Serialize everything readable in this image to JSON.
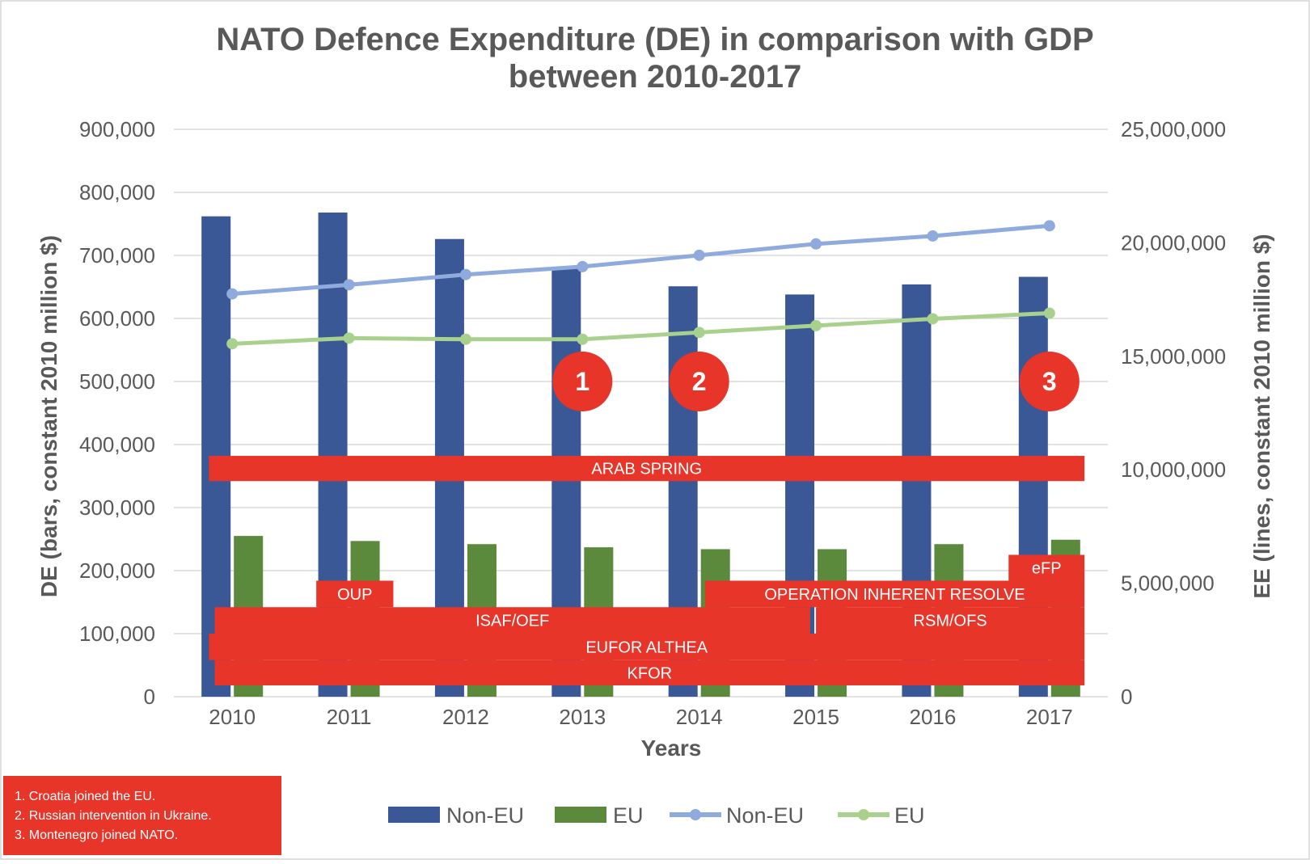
{
  "chart_data": {
    "type": "bar",
    "title_lines": [
      "NATO Defence Expenditure (DE) in comparison with GDP",
      "between 2010-2017"
    ],
    "xlabel": "Years",
    "ylabel_left": "DE (bars, constant 2010 million $)",
    "ylabel_right": "EE (lines, constant 2010 million $)",
    "categories": [
      "2010",
      "2011",
      "2012",
      "2013",
      "2014",
      "2015",
      "2016",
      "2017"
    ],
    "y_left": {
      "min": 0,
      "max": 900000,
      "ticks": [
        "0",
        "100,000",
        "200,000",
        "300,000",
        "400,000",
        "500,000",
        "600,000",
        "700,000",
        "800,000",
        "900,000"
      ]
    },
    "y_right": {
      "min": 0,
      "max": 25000000,
      "ticks": [
        "0",
        "5,000,000",
        "10,000,000",
        "15,000,000",
        "20,000,000",
        "25,000,000"
      ]
    },
    "grid": true,
    "legend_position": "bottom",
    "bar_series": [
      {
        "name": "Non-EU",
        "color": "#3a5796",
        "values": [
          762000,
          768000,
          726000,
          680000,
          651000,
          638000,
          654000,
          666000
        ]
      },
      {
        "name": "EU",
        "color": "#5b8a3c",
        "values": [
          255000,
          247000,
          242000,
          237000,
          234000,
          234000,
          242000,
          249000
        ]
      }
    ],
    "line_series": [
      {
        "name": "Non-EU",
        "color": "#8faadc",
        "values": [
          17750000,
          18150000,
          18600000,
          18950000,
          19450000,
          19950000,
          20300000,
          20750000
        ]
      },
      {
        "name": "EU",
        "color": "#a9d18e",
        "values": [
          15550000,
          15800000,
          15750000,
          15750000,
          16050000,
          16350000,
          16650000,
          16900000
        ]
      }
    ],
    "events": [
      {
        "label": "ARAB SPRING",
        "from": 2009.8,
        "to": 2017.3,
        "top": 382000,
        "bottom": 342000
      },
      {
        "label": "OUP",
        "from": 2010.72,
        "to": 2011.38,
        "top": 184000,
        "bottom": 142000
      },
      {
        "label": "OPERATION INHERENT RESOLVE",
        "from": 2014.05,
        "to": 2017.3,
        "top": 184000,
        "bottom": 142000
      },
      {
        "label": "eFP",
        "from": 2016.65,
        "to": 2017.3,
        "top": 225000,
        "bottom": 184000
      },
      {
        "label": "ISAF/OEF",
        "from": 2009.85,
        "to": 2014.95,
        "top": 142000,
        "bottom": 100000
      },
      {
        "label": "RSM/OFS",
        "from": 2015.0,
        "to": 2017.3,
        "top": 142000,
        "bottom": 100000
      },
      {
        "label": "EUFOR ALTHEA",
        "from": 2009.8,
        "to": 2017.3,
        "top": 100000,
        "bottom": 58000
      },
      {
        "label": "KFOR",
        "from": 2009.85,
        "to": 2017.3,
        "top": 58000,
        "bottom": 18000
      }
    ],
    "markers": [
      {
        "label": "1",
        "x": 2013.0,
        "y": 500000
      },
      {
        "label": "2",
        "x": 2014.0,
        "y": 500000
      },
      {
        "label": "3",
        "x": 2017.0,
        "y": 500000
      }
    ],
    "notes": [
      "1. Croatia joined the EU.",
      "2. Russian intervention in Ukraine.",
      "3. Montenegro joined NATO."
    ]
  },
  "colors": {
    "event_red": "#e8352a",
    "grid": "#d9d9d9",
    "text": "#595959"
  }
}
